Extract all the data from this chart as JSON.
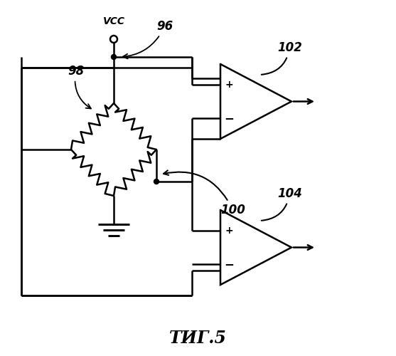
{
  "title": "ΤИГ.5",
  "fig_width": 5.57,
  "fig_height": 5.0,
  "dpi": 100,
  "bg": "#ffffff"
}
